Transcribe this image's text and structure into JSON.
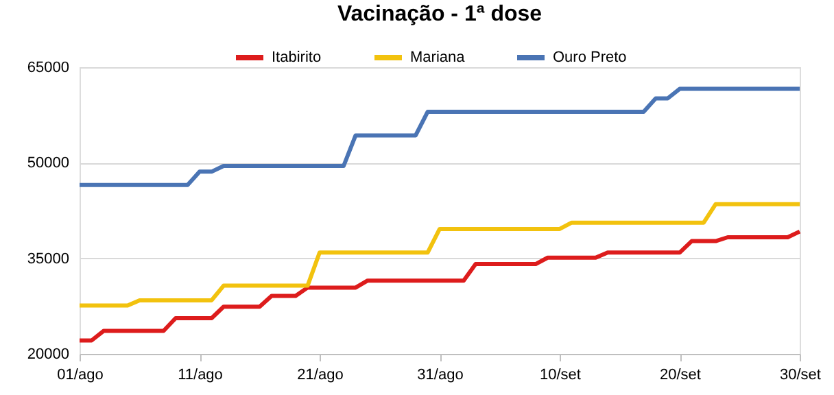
{
  "chart_data": {
    "type": "line",
    "title": "Vacinação - 1ª dose",
    "categories": [
      "01/ago",
      null,
      null,
      null,
      null,
      null,
      null,
      null,
      null,
      null,
      "11/ago",
      null,
      null,
      null,
      null,
      null,
      null,
      null,
      null,
      null,
      "21/ago",
      null,
      null,
      null,
      null,
      null,
      null,
      null,
      null,
      null,
      "31/ago",
      null,
      null,
      null,
      null,
      null,
      null,
      null,
      null,
      null,
      "10/set",
      null,
      null,
      null,
      null,
      null,
      null,
      null,
      null,
      null,
      "20/set",
      null,
      null,
      null,
      null,
      null,
      null,
      null,
      null,
      null,
      "30/set"
    ],
    "series": [
      {
        "name": "Itabirito",
        "color": "#dd1c1c",
        "values": [
          22100,
          22100,
          23600,
          23600,
          23600,
          23600,
          23600,
          23600,
          25600,
          25600,
          25600,
          25600,
          27400,
          27400,
          27400,
          27400,
          29100,
          29100,
          29100,
          30400,
          30400,
          30400,
          30400,
          30400,
          31500,
          31500,
          31500,
          31500,
          31500,
          31500,
          31500,
          31500,
          31500,
          34100,
          34100,
          34100,
          34100,
          34100,
          34100,
          35100,
          35100,
          35100,
          35100,
          35100,
          35900,
          35900,
          35900,
          35900,
          35900,
          35900,
          35900,
          37700,
          37700,
          37700,
          38300,
          38300,
          38300,
          38300,
          38300,
          38300,
          39200
        ]
      },
      {
        "name": "Mariana",
        "color": "#f2c20e",
        "values": [
          27600,
          27600,
          27600,
          27600,
          27600,
          28400,
          28400,
          28400,
          28400,
          28400,
          28400,
          28400,
          30700,
          30700,
          30700,
          30700,
          30700,
          30700,
          30700,
          30700,
          35900,
          35900,
          35900,
          35900,
          35900,
          35900,
          35900,
          35900,
          35900,
          35900,
          39600,
          39600,
          39600,
          39600,
          39600,
          39600,
          39600,
          39600,
          39600,
          39600,
          39600,
          40600,
          40600,
          40600,
          40600,
          40600,
          40600,
          40600,
          40600,
          40600,
          40600,
          40600,
          40600,
          43500,
          43500,
          43500,
          43500,
          43500,
          43500,
          43500,
          43500
        ]
      },
      {
        "name": "Ouro Preto",
        "color": "#4a74b4",
        "values": [
          46500,
          46500,
          46500,
          46500,
          46500,
          46500,
          46500,
          46500,
          46500,
          46500,
          48600,
          48600,
          49500,
          49500,
          49500,
          49500,
          49500,
          49500,
          49500,
          49500,
          49500,
          49500,
          49500,
          54300,
          54300,
          54300,
          54300,
          54300,
          54300,
          58000,
          58000,
          58000,
          58000,
          58000,
          58000,
          58000,
          58000,
          58000,
          58000,
          58000,
          58000,
          58000,
          58000,
          58000,
          58000,
          58000,
          58000,
          58000,
          60100,
          60100,
          61600,
          61600,
          61600,
          61600,
          61600,
          61600,
          61600,
          61600,
          61600,
          61600,
          61600
        ]
      }
    ],
    "ylim": [
      20000,
      65000
    ],
    "yticks": [
      20000,
      35000,
      50000,
      65000
    ],
    "grid": "y",
    "legend": "top",
    "marker": "none",
    "line_style": "solid"
  }
}
